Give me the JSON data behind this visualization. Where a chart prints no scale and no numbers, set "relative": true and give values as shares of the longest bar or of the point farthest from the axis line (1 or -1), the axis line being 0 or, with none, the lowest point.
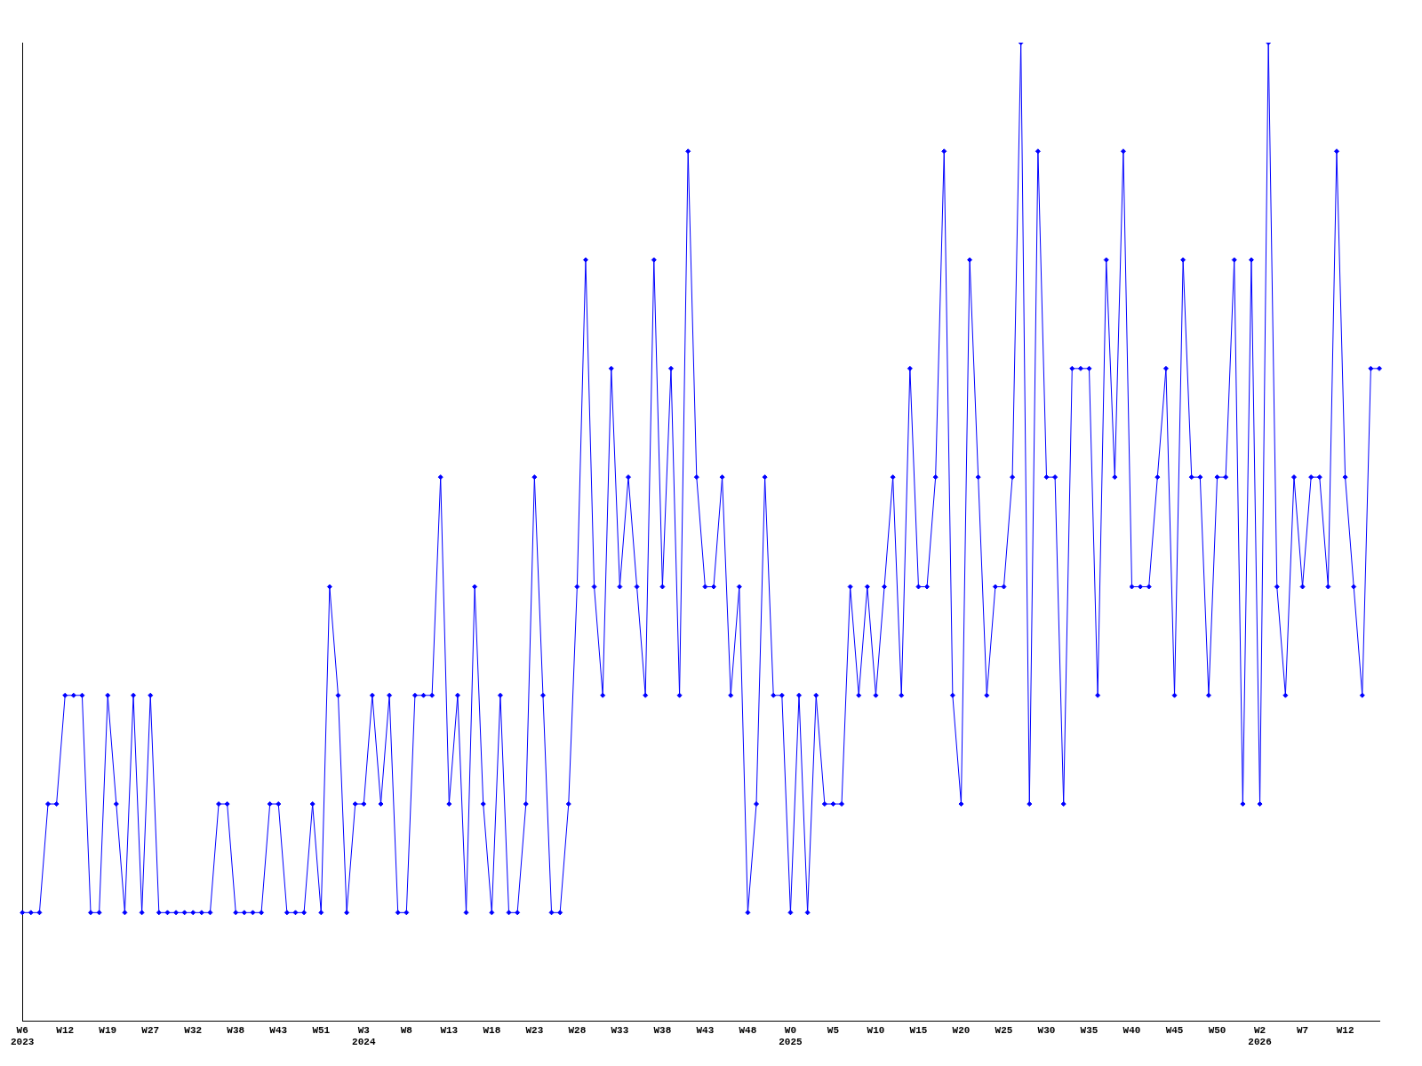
{
  "chart_data": {
    "type": "line",
    "relative": true,
    "color": "#0000ff",
    "marker": "diamond",
    "grid": false,
    "legend": false,
    "categories": [
      "W6\n2023",
      null,
      null,
      null,
      null,
      "W12",
      null,
      null,
      null,
      null,
      "W19",
      null,
      null,
      null,
      null,
      "W27",
      null,
      null,
      null,
      null,
      "W32",
      null,
      null,
      null,
      null,
      "W38",
      null,
      null,
      null,
      null,
      "W43",
      null,
      null,
      null,
      null,
      "W51",
      null,
      null,
      null,
      null,
      "W3\n2024",
      null,
      null,
      null,
      null,
      "W8",
      null,
      null,
      null,
      null,
      "W13",
      null,
      null,
      null,
      null,
      "W18",
      null,
      null,
      null,
      null,
      "W23",
      null,
      null,
      null,
      null,
      "W28",
      null,
      null,
      null,
      null,
      "W33",
      null,
      null,
      null,
      null,
      "W38",
      null,
      null,
      null,
      null,
      "W43",
      null,
      null,
      null,
      null,
      "W48",
      null,
      null,
      null,
      null,
      "W0\n2025",
      null,
      null,
      null,
      null,
      "W5",
      null,
      null,
      null,
      null,
      "W10",
      null,
      null,
      null,
      null,
      "W15",
      null,
      null,
      null,
      null,
      "W20",
      null,
      null,
      null,
      null,
      "W25",
      null,
      null,
      null,
      null,
      "W30",
      null,
      null,
      null,
      null,
      "W35",
      null,
      null,
      null,
      null,
      "W40",
      null,
      null,
      null,
      null,
      "W45",
      null,
      null,
      null,
      null,
      "W50",
      null,
      null,
      null,
      null,
      "W2\n2026",
      null,
      null,
      null,
      null,
      "W7",
      null,
      null,
      null,
      null,
      "W12",
      null,
      null,
      null,
      null
    ],
    "values": [
      0.111,
      0.111,
      0.111,
      0.222,
      0.222,
      0.333,
      0.333,
      0.333,
      0.111,
      0.111,
      0.333,
      0.222,
      0.111,
      0.333,
      0.111,
      0.333,
      0.111,
      0.111,
      0.111,
      0.111,
      0.111,
      0.111,
      0.111,
      0.222,
      0.222,
      0.111,
      0.111,
      0.111,
      0.111,
      0.222,
      0.222,
      0.111,
      0.111,
      0.111,
      0.222,
      0.111,
      0.444,
      0.333,
      0.111,
      0.222,
      0.222,
      0.333,
      0.222,
      0.333,
      0.111,
      0.111,
      0.333,
      0.333,
      0.333,
      0.556,
      0.222,
      0.333,
      0.111,
      0.444,
      0.222,
      0.111,
      0.333,
      0.111,
      0.111,
      0.222,
      0.556,
      0.333,
      0.111,
      0.111,
      0.222,
      0.444,
      0.778,
      0.444,
      0.333,
      0.667,
      0.444,
      0.556,
      0.444,
      0.333,
      0.778,
      0.444,
      0.667,
      0.333,
      0.889,
      0.556,
      0.444,
      0.444,
      0.556,
      0.333,
      0.444,
      0.111,
      0.222,
      0.556,
      0.333,
      0.333,
      0.111,
      0.333,
      0.111,
      0.333,
      0.222,
      0.222,
      0.222,
      0.444,
      0.333,
      0.444,
      0.333,
      0.444,
      0.556,
      0.333,
      0.667,
      0.444,
      0.444,
      0.556,
      0.889,
      0.333,
      0.222,
      0.778,
      0.556,
      0.333,
      0.444,
      0.444,
      0.556,
      1,
      0.222,
      0.889,
      0.556,
      0.556,
      0.222,
      0.667,
      0.667,
      0.667,
      0.333,
      0.778,
      0.556,
      0.889,
      0.444,
      0.444,
      0.444,
      0.556,
      0.667,
      0.333,
      0.778,
      0.556,
      0.556,
      0.333,
      0.556,
      0.556,
      0.778,
      0.222,
      0.778,
      0.222,
      1,
      0.444,
      0.333,
      0.556,
      0.444,
      0.556,
      0.556,
      0.444,
      0.889,
      0.556,
      0.444,
      0.333,
      0.667,
      0.667
    ]
  }
}
